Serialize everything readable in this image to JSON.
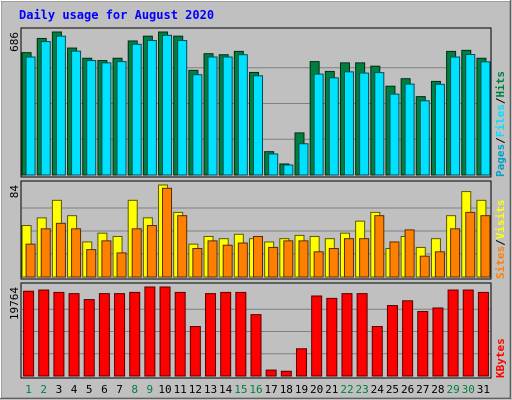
{
  "chart_data": {
    "type": "bar",
    "title": "Daily usage for August 2020",
    "x": [
      "1",
      "2",
      "3",
      "4",
      "5",
      "6",
      "7",
      "8",
      "9",
      "10",
      "11",
      "12",
      "13",
      "14",
      "15",
      "16",
      "17",
      "18",
      "19",
      "20",
      "21",
      "22",
      "23",
      "24",
      "25",
      "26",
      "27",
      "28",
      "29",
      "30",
      "31"
    ],
    "weekend_days": [
      "1",
      "2",
      "8",
      "9",
      "15",
      "16",
      "22",
      "23",
      "29",
      "30"
    ],
    "panels": [
      {
        "id": "hits",
        "ymax_label": "686",
        "ymax": 686,
        "legend": [
          "Pages",
          "/",
          "Files",
          "/",
          "Hits"
        ],
        "series": [
          {
            "name": "Hits",
            "color": "#008040",
            "values": [
              587,
              655,
              686,
              609,
              560,
              549,
              560,
              643,
              666,
              686,
              666,
              502,
              582,
              577,
              593,
              492,
              112,
              53,
              202,
              544,
              497,
              538,
              538,
              522,
              426,
              462,
              376,
              449,
              593,
              598,
              560
            ]
          },
          {
            "name": "Files",
            "color": "#00e0ff",
            "values": [
              566,
              640,
              666,
              594,
              549,
              538,
              544,
              627,
              645,
              670,
              645,
              481,
              566,
              566,
              577,
              476,
              101,
              48,
              150,
              484,
              466,
              495,
              489,
              491,
              388,
              436,
              356,
              435,
              566,
              578,
              543
            ]
          },
          {
            "name": "Pages",
            "color": "#00a0c8",
            "values": [
              0,
              0,
              0,
              0,
              0,
              0,
              0,
              0,
              0,
              0,
              0,
              0,
              0,
              0,
              0,
              0,
              0,
              0,
              0,
              0,
              0,
              0,
              0,
              0,
              0,
              0,
              0,
              0,
              0,
              0,
              0
            ]
          }
        ]
      },
      {
        "id": "visits",
        "ymax_label": "84",
        "ymax": 84,
        "legend": [
          "Sites",
          "/",
          "Visits"
        ],
        "series": [
          {
            "name": "Visits",
            "color": "#ffff00",
            "values": [
              47,
              54,
              70,
              56,
              32,
              40,
              37,
              70,
              54,
              84,
              59,
              30,
              37,
              35,
              39,
              35,
              32,
              35,
              38,
              37,
              35,
              40,
              51,
              59,
              26,
              37,
              27,
              35,
              56,
              78,
              70
            ]
          },
          {
            "name": "Sites",
            "color": "#ff8000",
            "values": [
              30,
              44,
              49,
              44,
              25,
              33,
              22,
              44,
              47,
              81,
              56,
              26,
              33,
              29,
              31,
              37,
              27,
              33,
              33,
              23,
              26,
              35,
              35,
              56,
              32,
              43,
              19,
              23,
              44,
              59,
              56
            ]
          }
        ]
      },
      {
        "id": "kbytes",
        "ymax_label": "19764",
        "ymax": 19764,
        "legend": [
          "KBytes"
        ],
        "series": [
          {
            "name": "KBytes",
            "color": "#ff0000",
            "values": [
              18826,
              19092,
              18563,
              18296,
              16973,
              18296,
              18296,
              18563,
              19764,
              19764,
              18563,
              10990,
              18296,
              18563,
              18563,
              13627,
              1316,
              1052,
              6049,
              17767,
              17238,
              18296,
              18296,
              10990,
              15641,
              16709,
              14316,
              15107,
              19092,
              19092,
              18563
            ]
          }
        ]
      }
    ]
  }
}
